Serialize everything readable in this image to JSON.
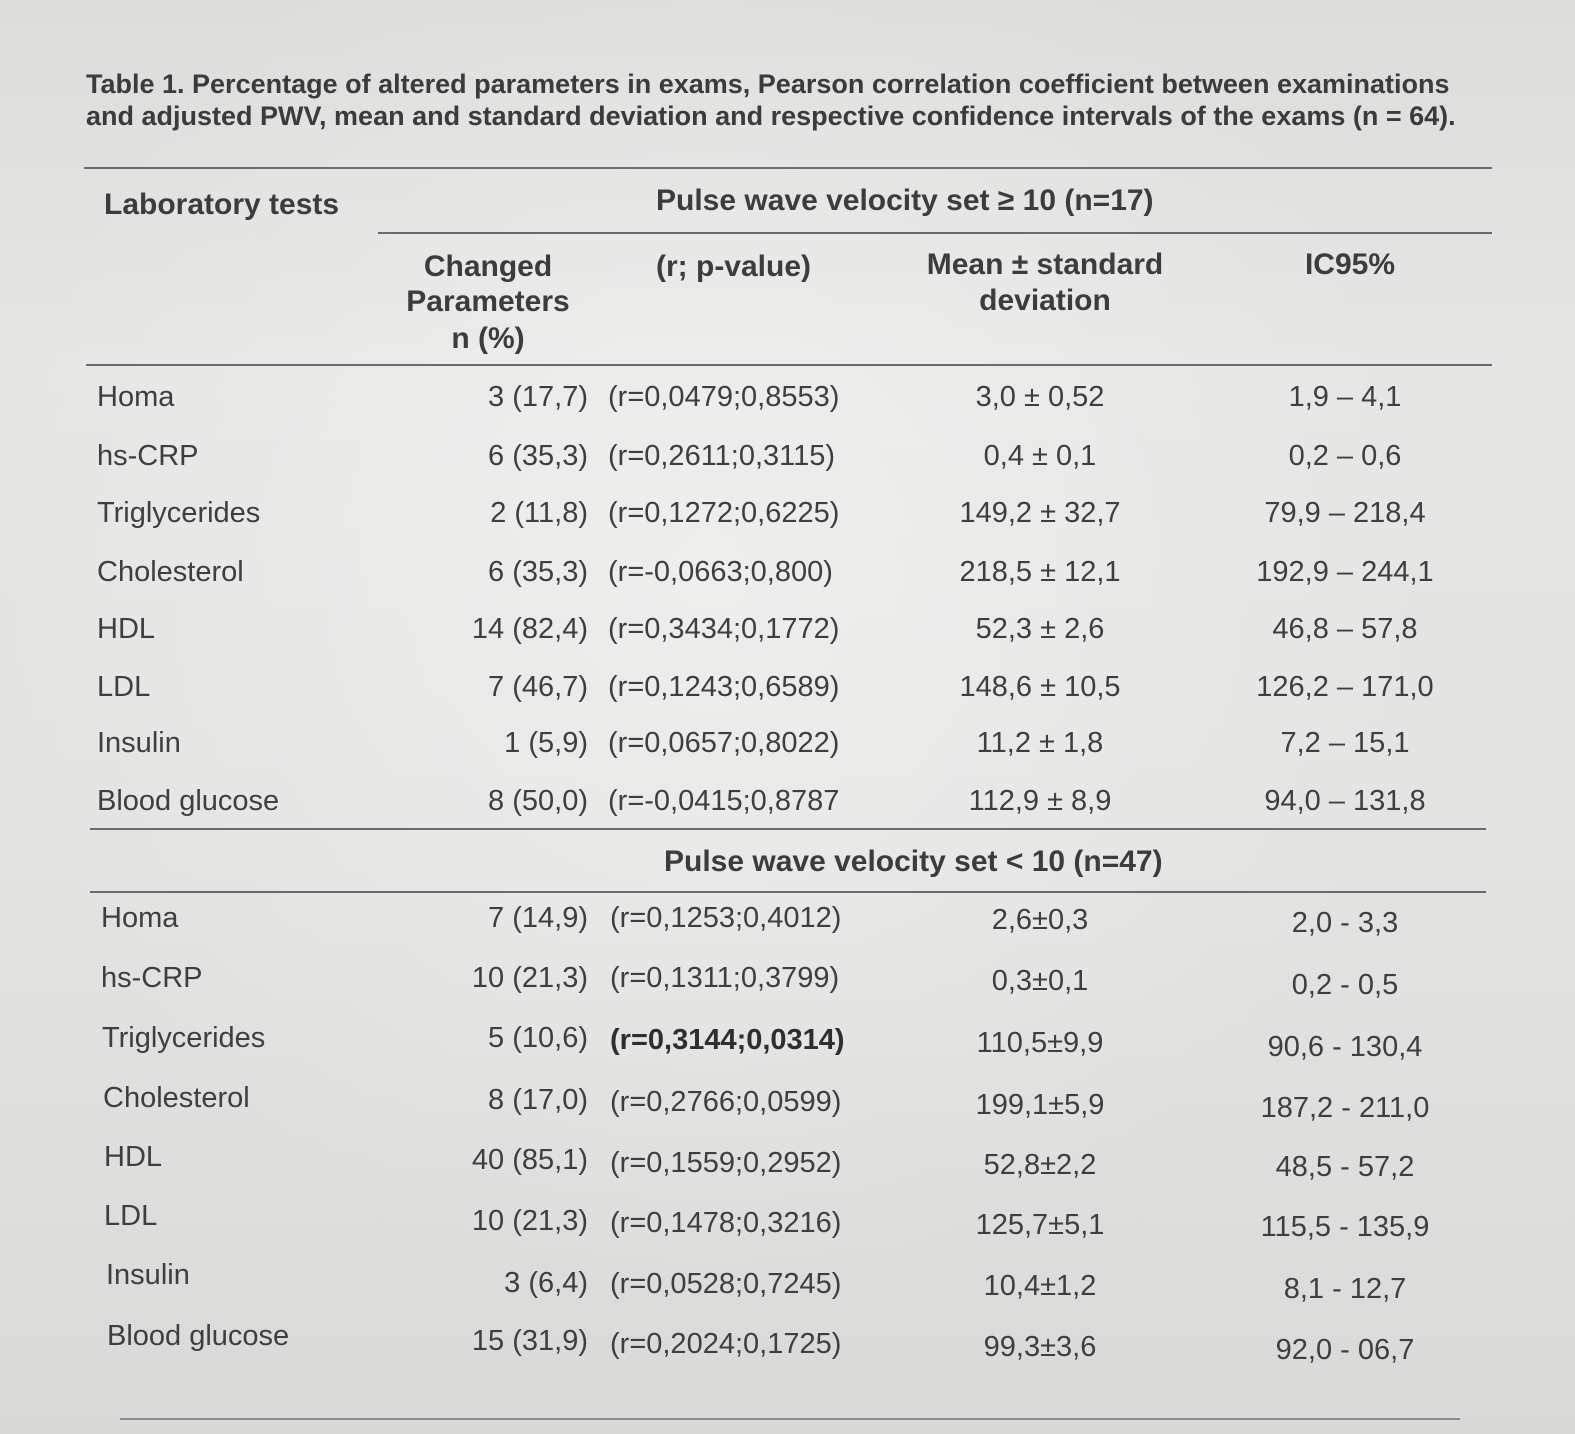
{
  "caption": "Table 1. Percentage of altered parameters in exams, Pearson correlation coefficient between examinations and adjusted PWV, mean and standard deviation and respective confidence intervals of the exams (n = 64).",
  "header": {
    "lab_tests": "Laboratory tests",
    "group1_title": "Pulse wave velocity set ≥ 10  (n=17)",
    "changed_line1": "Changed",
    "changed_line2": "Parameters",
    "changed_line3": "n (%)",
    "r_p": "(r; p-value)",
    "mean_line1": "Mean ± standard",
    "mean_line2": "deviation",
    "ic95": "IC95%"
  },
  "group2_title": "Pulse wave velocity set < 10 (n=47)",
  "group1_rows": [
    {
      "test": "Homa",
      "changed": "3 (17,7)",
      "rp": "(r=0,0479;0,8553)",
      "mean": "3,0 ± 0,52",
      "ic": "1,9 – 4,1"
    },
    {
      "test": "hs-CRP",
      "changed": "6 (35,3)",
      "rp": "(r=0,2611;0,3115)",
      "mean": "0,4 ± 0,1",
      "ic": "0,2 – 0,6"
    },
    {
      "test": "Triglycerides",
      "changed": "2 (11,8)",
      "rp": "(r=0,1272;0,6225)",
      "mean": "149,2 ± 32,7",
      "ic": "79,9 – 218,4"
    },
    {
      "test": "Cholesterol",
      "changed": "6 (35,3)",
      "rp": "(r=-0,0663;0,800)",
      "mean": "218,5 ± 12,1",
      "ic": "192,9 – 244,1"
    },
    {
      "test": "HDL",
      "changed": "14 (82,4)",
      "rp": "(r=0,3434;0,1772)",
      "mean": "52,3 ± 2,6",
      "ic": "46,8 – 57,8"
    },
    {
      "test": "LDL",
      "changed": "7 (46,7)",
      "rp": "(r=0,1243;0,6589)",
      "mean": "148,6 ± 10,5",
      "ic": "126,2 – 171,0"
    },
    {
      "test": "Insulin",
      "changed": "1 (5,9)",
      "rp": "(r=0,0657;0,8022)",
      "mean": "11,2 ± 1,8",
      "ic": "7,2 – 15,1"
    },
    {
      "test": "Blood glucose",
      "changed": "8 (50,0)",
      "rp": "(r=-0,0415;0,8787",
      "mean": "112,9 ± 8,9",
      "ic": "94,0 – 131,8"
    }
  ],
  "group2_rows": [
    {
      "test": "Homa",
      "changed": "7 (14,9)",
      "rp": "(r=0,1253;0,4012)",
      "mean": "2,6±0,3",
      "ic": "2,0 - 3,3"
    },
    {
      "test": "hs-CRP",
      "changed": "10 (21,3)",
      "rp": "(r=0,1311;0,3799)",
      "mean": "0,3±0,1",
      "ic": "0,2 - 0,5"
    },
    {
      "test": "Triglycerides",
      "changed": "5 (10,6)",
      "rp": "(r=0,3144;0,0314)",
      "mean": "110,5±9,9",
      "ic": "90,6 - 130,4",
      "bold": true
    },
    {
      "test": "Cholesterol",
      "changed": "8 (17,0)",
      "rp": "(r=0,2766;0,0599)",
      "mean": "199,1±5,9",
      "ic": "187,2 - 211,0"
    },
    {
      "test": "HDL",
      "changed": "40 (85,1)",
      "rp": "(r=0,1559;0,2952)",
      "mean": "52,8±2,2",
      "ic": "48,5 - 57,2"
    },
    {
      "test": "LDL",
      "changed": "10 (21,3)",
      "rp": "(r=0,1478;0,3216)",
      "mean": "125,7±5,1",
      "ic": "115,5 - 135,9"
    },
    {
      "test": "Insulin",
      "changed": "3 (6,4)",
      "rp": "(r=0,0528;0,7245)",
      "mean": "10,4±1,2",
      "ic": "8,1 - 12,7"
    },
    {
      "test": "Blood glucose",
      "changed": "15 (31,9)",
      "rp": "(r=0,2024;0,1725)",
      "mean": "99,3±3,6",
      "ic": "92,0 - 06,7"
    }
  ]
}
